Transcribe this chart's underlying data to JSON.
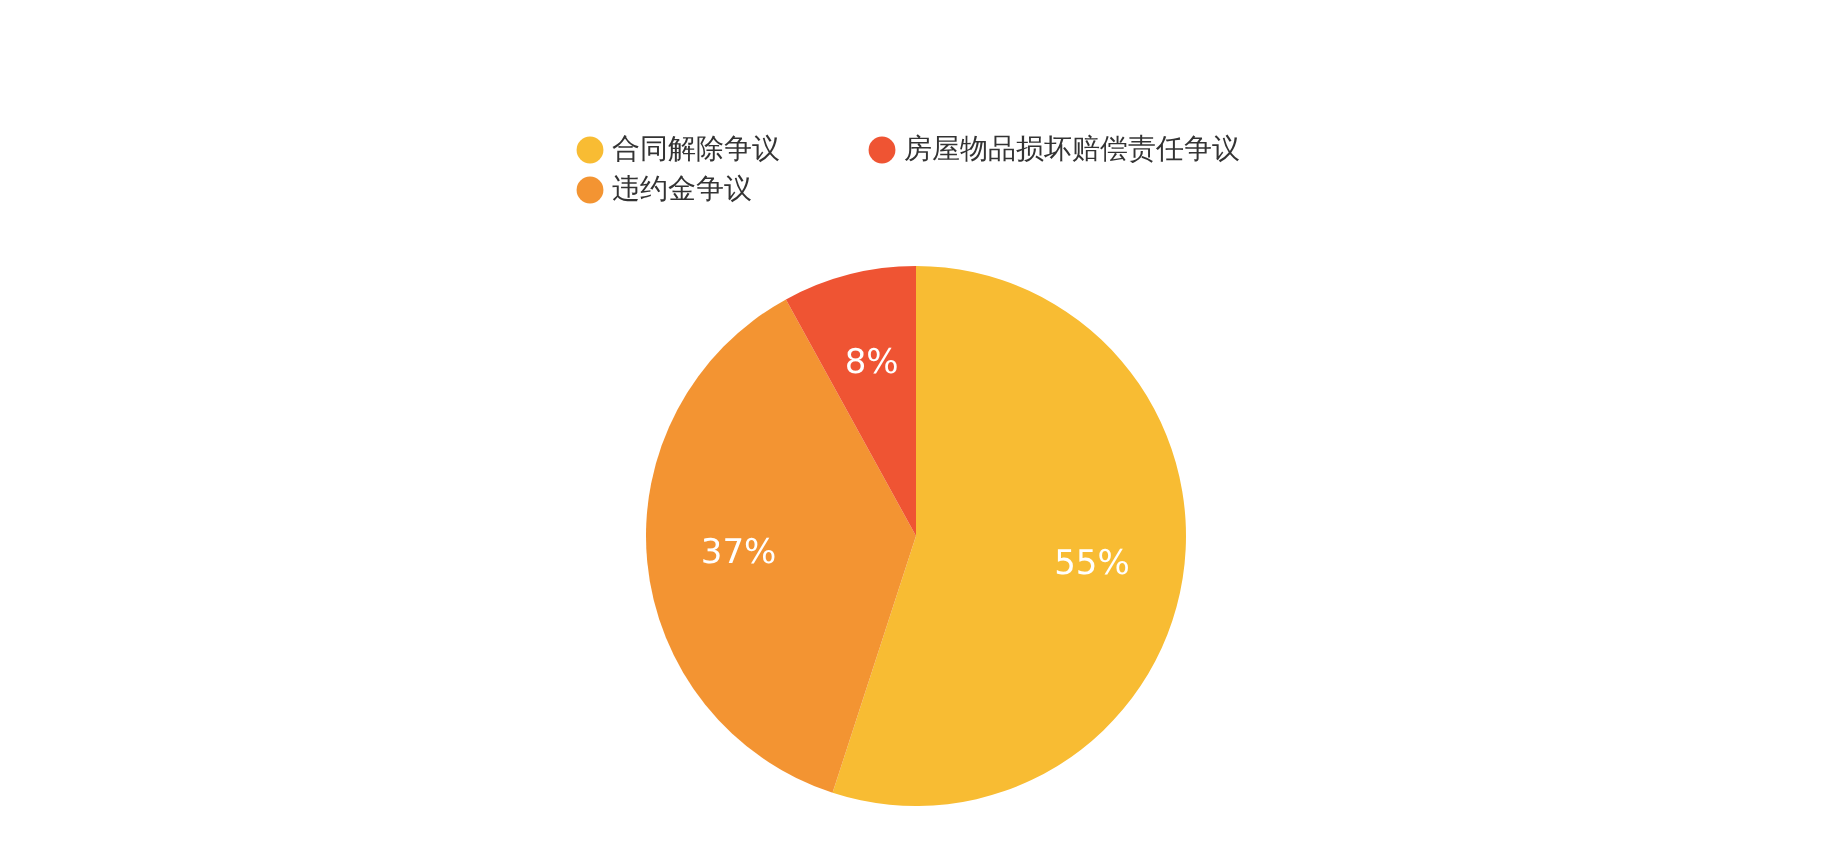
{
  "chart_data": {
    "type": "pie",
    "categories": [
      "合同解除争议",
      "违约金争议",
      "房屋物品损坏赔偿责任争议"
    ],
    "values": [
      55,
      37,
      8
    ],
    "colors": [
      "#f8bc33",
      "#f39432",
      "#ef5433"
    ],
    "value_labels": [
      "55%",
      "37%",
      "8%"
    ],
    "legend": "top"
  }
}
